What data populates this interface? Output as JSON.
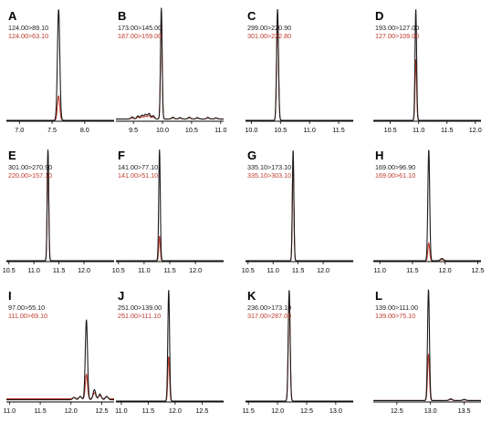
{
  "colors": {
    "primary": "#1a1a1a",
    "secondary": "#c0392b",
    "axis": "#000000"
  },
  "chart_data": [
    {
      "type": "line",
      "panel": "A",
      "transitions": [
        "124.00>89.10",
        "124.00>63.10"
      ],
      "xlim": [
        6.8,
        8.45
      ],
      "xticks": [
        7.0,
        7.5,
        8.0
      ],
      "peak": {
        "x": 7.6,
        "width": 0.018
      },
      "heights": [
        1.0,
        0.22
      ],
      "baseline": [
        0,
        0
      ],
      "noise": []
    },
    {
      "type": "line",
      "panel": "B",
      "transitions": [
        "173.00>145.00",
        "187.00>159.00"
      ],
      "xlim": [
        9.2,
        11.05
      ],
      "xticks": [
        9.5,
        10.0,
        10.5,
        11.0
      ],
      "peak": {
        "x": 9.98,
        "width": 0.014
      },
      "heights": [
        1.0,
        0.92
      ],
      "baseline": [
        0.012,
        0.012
      ],
      "noise": [
        [
          9.48,
          0.018
        ],
        [
          9.58,
          0.028
        ],
        [
          9.65,
          0.035
        ],
        [
          9.71,
          0.042
        ],
        [
          9.77,
          0.05
        ],
        [
          9.84,
          0.03
        ],
        [
          10.18,
          0.015
        ],
        [
          10.3,
          0.012
        ],
        [
          10.46,
          0.016
        ],
        [
          10.6,
          0.012
        ],
        [
          10.78,
          0.014
        ],
        [
          10.92,
          0.01
        ]
      ]
    },
    {
      "type": "line",
      "panel": "C",
      "transitions": [
        "299.00>220.90",
        "301.00>222.80"
      ],
      "xlim": [
        9.9,
        11.75
      ],
      "xticks": [
        10.0,
        10.5,
        11.0,
        11.5
      ],
      "peak": {
        "x": 10.45,
        "width": 0.016
      },
      "heights": [
        1.0,
        0.96
      ],
      "baseline": [
        0,
        0
      ],
      "noise": []
    },
    {
      "type": "line",
      "panel": "D",
      "transitions": [
        "193.00>127.00",
        "127.00>109.00"
      ],
      "xlim": [
        10.2,
        12.1
      ],
      "xticks": [
        10.5,
        11.0,
        11.5,
        12.0
      ],
      "peak": {
        "x": 10.95,
        "width": 0.014
      },
      "heights": [
        1.0,
        0.55
      ],
      "baseline": [
        0,
        0
      ],
      "noise": []
    },
    {
      "type": "line",
      "panel": "E",
      "transitions": [
        "301.00>270.90",
        "220.00>157.10"
      ],
      "xlim": [
        10.45,
        12.6
      ],
      "xticks": [
        10.5,
        11.0,
        11.5,
        12.0
      ],
      "peak": {
        "x": 11.28,
        "width": 0.015
      },
      "heights": [
        1.0,
        0.98
      ],
      "baseline": [
        0,
        0
      ],
      "noise": []
    },
    {
      "type": "line",
      "panel": "F",
      "transitions": [
        "141.00>77.10",
        "141.00>51.10"
      ],
      "xlim": [
        10.45,
        12.55
      ],
      "xticks": [
        10.5,
        11.0,
        11.5,
        12.0
      ],
      "peak": {
        "x": 11.3,
        "width": 0.015
      },
      "heights": [
        1.0,
        0.22
      ],
      "baseline": [
        0,
        0
      ],
      "noise": []
    },
    {
      "type": "line",
      "panel": "G",
      "transitions": [
        "335.10>173.10",
        "335.10>303.10"
      ],
      "xlim": [
        10.45,
        12.6
      ],
      "xticks": [
        10.5,
        11.0,
        11.5,
        12.0
      ],
      "peak": {
        "x": 11.4,
        "width": 0.015
      },
      "heights": [
        1.0,
        0.93
      ],
      "baseline": [
        0,
        0
      ],
      "noise": []
    },
    {
      "type": "line",
      "panel": "H",
      "transitions": [
        "169.00>96.90",
        "169.00>61.10"
      ],
      "xlim": [
        10.9,
        12.55
      ],
      "xticks": [
        11.0,
        11.5,
        12.0,
        12.5
      ],
      "peak": {
        "x": 11.75,
        "width": 0.014
      },
      "heights": [
        1.0,
        0.16
      ],
      "baseline": [
        0,
        0
      ],
      "noise": [
        [
          11.95,
          0.02
        ]
      ]
    },
    {
      "type": "line",
      "panel": "I",
      "transitions": [
        "97.00>55.10",
        "111.00>69.10"
      ],
      "xlim": [
        10.95,
        12.7
      ],
      "xticks": [
        11.0,
        11.5,
        12.0,
        12.5
      ],
      "peak": {
        "x": 12.25,
        "width": 0.018
      },
      "heights": [
        0.72,
        0.22
      ],
      "baseline": [
        0.012,
        0.02
      ],
      "noise": [
        [
          12.05,
          0.02
        ],
        [
          12.15,
          0.03
        ],
        [
          12.38,
          0.09
        ],
        [
          12.47,
          0.05
        ],
        [
          12.58,
          0.03
        ]
      ]
    },
    {
      "type": "line",
      "panel": "J",
      "transitions": [
        "251.00>139.00",
        "251.00>111.10"
      ],
      "xlim": [
        10.9,
        12.9
      ],
      "xticks": [
        11.0,
        11.5,
        12.0,
        12.5
      ],
      "peak": {
        "x": 11.88,
        "width": 0.016
      },
      "heights": [
        1.0,
        0.4
      ],
      "baseline": [
        0,
        0
      ],
      "noise": []
    },
    {
      "type": "line",
      "panel": "K",
      "transitions": [
        "236.00>173.10",
        "317.00>287.00"
      ],
      "xlim": [
        11.45,
        13.3
      ],
      "xticks": [
        11.5,
        12.0,
        12.5,
        13.0
      ],
      "peak": {
        "x": 12.2,
        "width": 0.016
      },
      "heights": [
        1.0,
        0.96
      ],
      "baseline": [
        0,
        0
      ],
      "noise": []
    },
    {
      "type": "line",
      "panel": "L",
      "transitions": [
        "139.00>111.00",
        "139.00>75.10"
      ],
      "xlim": [
        12.15,
        13.75
      ],
      "xticks": [
        12.5,
        13.0,
        13.5
      ],
      "peak": {
        "x": 12.97,
        "width": 0.014
      },
      "heights": [
        1.0,
        0.42
      ],
      "baseline": [
        0.005,
        0.005
      ],
      "noise": [
        [
          13.3,
          0.015
        ],
        [
          13.5,
          0.01
        ]
      ]
    }
  ]
}
